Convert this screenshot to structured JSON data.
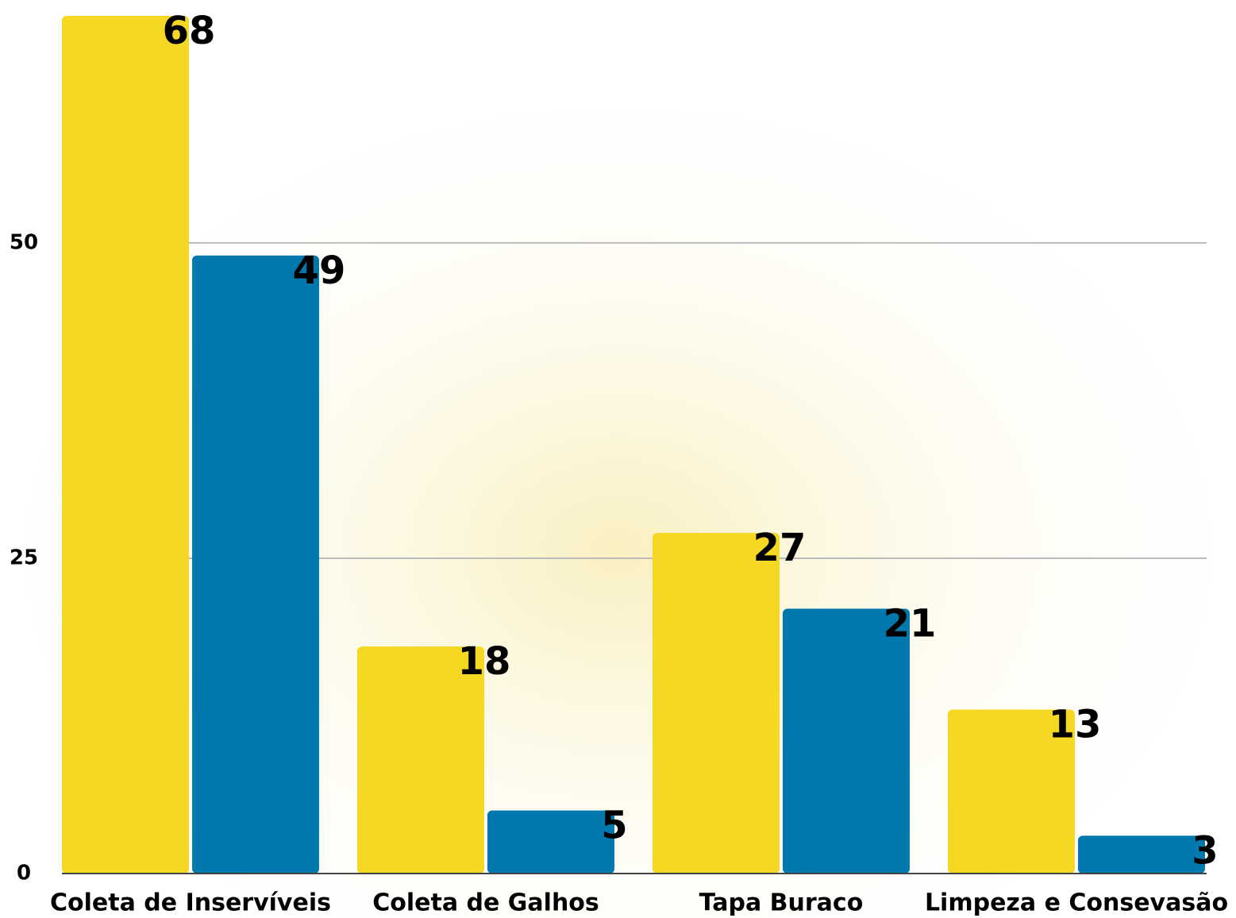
{
  "chart_data": {
    "type": "bar",
    "categories": [
      "Coleta de Inservíveis",
      "Coleta de Galhos",
      "Tapa Buraco",
      "Limpeza e Consevasão"
    ],
    "series": [
      {
        "color": "#f5d823",
        "values": [
          68,
          18,
          27,
          13
        ]
      },
      {
        "color": "#0077ad",
        "values": [
          49,
          5,
          21,
          3
        ]
      }
    ],
    "ylim": [
      0,
      68
    ],
    "yticks": [
      0,
      25,
      50
    ],
    "grid": true
  }
}
